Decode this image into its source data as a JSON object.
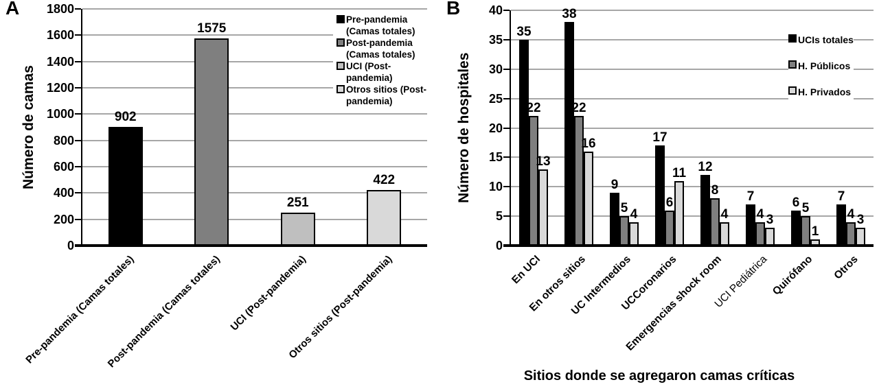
{
  "figure": {
    "panel_letters": [
      "A",
      "B"
    ]
  },
  "chart_data": [
    {
      "panel_letter": "A",
      "type": "bar",
      "title": "",
      "ylabel": "Número de camas",
      "xlabel": "",
      "ylim": [
        0,
        1800
      ],
      "yticks": [
        0,
        200,
        400,
        600,
        800,
        1000,
        1200,
        1400,
        1600,
        1800
      ],
      "grid": true,
      "data_labels": true,
      "categories": [
        "Pre-pandemia (Camas totales)",
        "Post-pandemia (Camas totales)",
        "UCI (Post-pandemia)",
        "Otros sitios (Post-pandemia)"
      ],
      "values": [
        902,
        1575,
        251,
        422
      ],
      "bar_colors": [
        "#000000",
        "#7f7f7f",
        "#bfbfbf",
        "#d9d9d9"
      ],
      "legend_position": "top-right-inside",
      "legend": [
        {
          "label": "Pre-pandemia (Camas totales)",
          "lines": [
            "Pre-pandemia",
            "(Camas totales)"
          ],
          "color": "#000000"
        },
        {
          "label": "Post-pandemia (Camas totales)",
          "lines": [
            "Post-pandemia",
            "(Camas totales)"
          ],
          "color": "#7f7f7f"
        },
        {
          "label": "UCI (Post-pandemia)",
          "lines": [
            "UCI (Post-",
            "pandemia)"
          ],
          "color": "#bfbfbf"
        },
        {
          "label": "Otros sitios (Post-pandemia)",
          "lines": [
            "Otros sitios (Post-",
            "pandemia)"
          ],
          "color": "#d9d9d9"
        }
      ]
    },
    {
      "panel_letter": "B",
      "type": "bar",
      "title": "",
      "ylabel": "Número de hospitales",
      "xlabel": "Sitios donde se agregaron camas críticas",
      "ylim": [
        0,
        40
      ],
      "yticks": [
        0,
        5,
        10,
        15,
        20,
        25,
        30,
        35,
        40
      ],
      "grid": true,
      "data_labels": true,
      "categories": [
        "En UCI",
        "En otros sitios",
        "UC Intermedios",
        "UCCoronarios",
        "Emergencias shock room",
        "UCI Pediátrica",
        "Quirófano",
        "Otros"
      ],
      "category_styles": [
        "bold",
        "bold",
        "bold",
        "bold",
        "bold",
        "normal",
        "bold",
        "bold"
      ],
      "series": [
        {
          "name": "UCIs totales",
          "color": "#000000",
          "values": [
            35,
            38,
            9,
            17,
            12,
            7,
            6,
            7
          ]
        },
        {
          "name": "H. Públicos",
          "color": "#7f7f7f",
          "values": [
            22,
            22,
            5,
            6,
            8,
            4,
            5,
            4
          ]
        },
        {
          "name": "H. Privados",
          "color": "#d9d9d9",
          "values": [
            13,
            16,
            4,
            11,
            4,
            3,
            1,
            3
          ]
        }
      ],
      "legend_position": "right-inside"
    }
  ]
}
